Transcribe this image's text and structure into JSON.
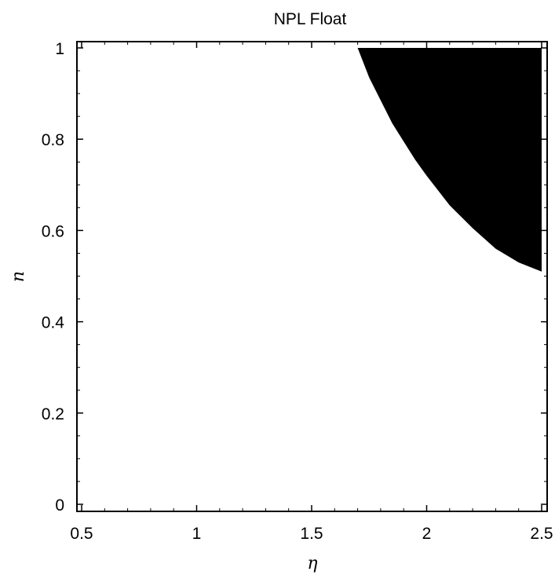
{
  "chart_data": {
    "type": "area",
    "title": "NPL  Float",
    "xlabel": "η",
    "ylabel": "n",
    "xlim": [
      0.5,
      2.5
    ],
    "ylim": [
      0,
      1
    ],
    "x_ticks": [
      0.5,
      1,
      1.5,
      2,
      2.5
    ],
    "x_tick_labels": [
      "0.5",
      "1",
      "1.5",
      "2",
      "2.5"
    ],
    "y_ticks": [
      0,
      0.2,
      0.4,
      0.6,
      0.8,
      1
    ],
    "y_tick_labels": [
      "0",
      "0.2",
      "0.4",
      "0.6",
      "0.8",
      "1"
    ],
    "grid": false,
    "legend": "none",
    "fill_color": "#000000",
    "region_boundary": [
      {
        "x": 1.7,
        "y": 1.0
      },
      {
        "x": 1.75,
        "y": 0.935
      },
      {
        "x": 1.8,
        "y": 0.885
      },
      {
        "x": 1.85,
        "y": 0.835
      },
      {
        "x": 1.9,
        "y": 0.795
      },
      {
        "x": 1.95,
        "y": 0.755
      },
      {
        "x": 2.0,
        "y": 0.72
      },
      {
        "x": 2.1,
        "y": 0.655
      },
      {
        "x": 2.2,
        "y": 0.605
      },
      {
        "x": 2.3,
        "y": 0.56
      },
      {
        "x": 2.4,
        "y": 0.53
      },
      {
        "x": 2.5,
        "y": 0.51
      }
    ]
  }
}
